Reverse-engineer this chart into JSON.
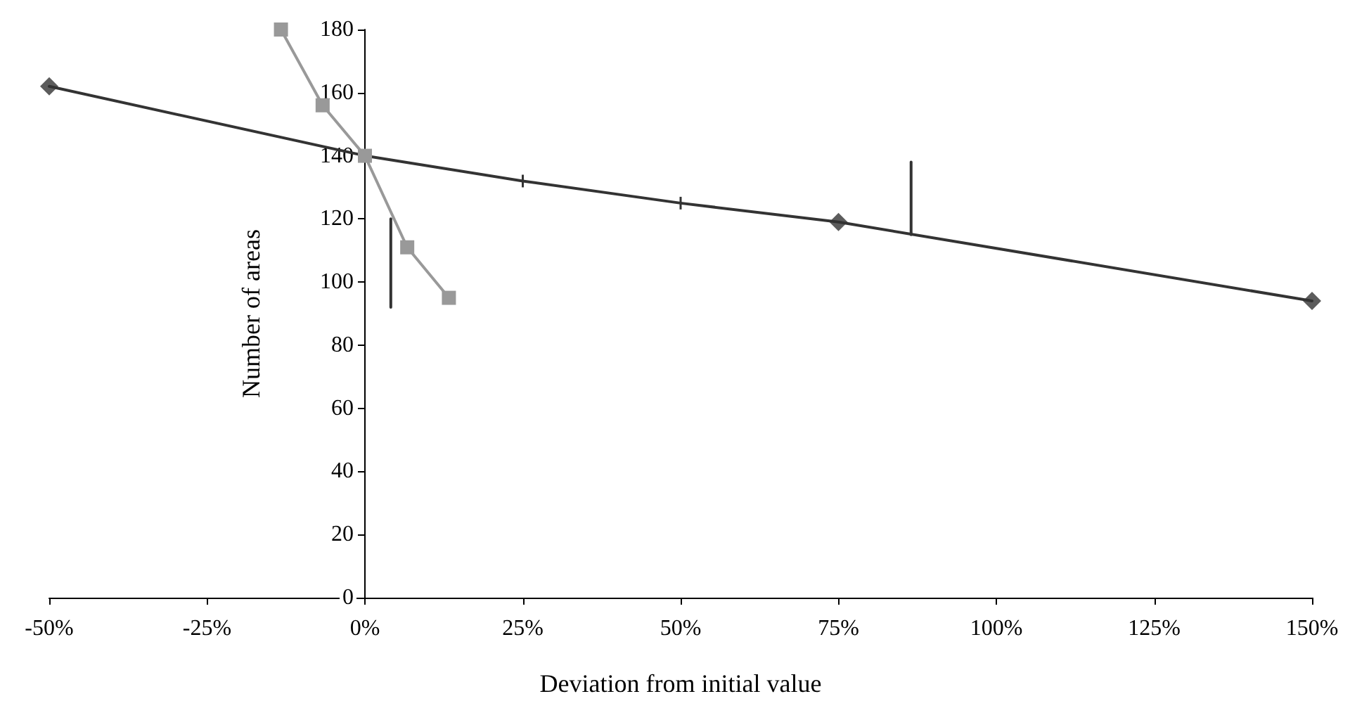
{
  "chart_data": {
    "type": "line",
    "xlabel": "Deviation from initial value",
    "ylabel": "Number of areas",
    "xlim": [
      -50,
      150
    ],
    "ylim": [
      0,
      180
    ],
    "xticks": [
      {
        "value": -50,
        "label": "-50%"
      },
      {
        "value": -25,
        "label": "-25%"
      },
      {
        "value": 0,
        "label": "0%"
      },
      {
        "value": 25,
        "label": "25%"
      },
      {
        "value": 50,
        "label": "50%"
      },
      {
        "value": 75,
        "label": "75%"
      },
      {
        "value": 100,
        "label": "100%"
      },
      {
        "value": 125,
        "label": "125%"
      },
      {
        "value": 150,
        "label": "150%"
      }
    ],
    "yticks": [
      0,
      20,
      40,
      60,
      80,
      100,
      120,
      140,
      160,
      180
    ],
    "grid": false,
    "series": [
      {
        "color": "#333333",
        "marker": "none",
        "x": [
          -50,
          0,
          25,
          50,
          75,
          150
        ],
        "values": [
          162,
          140,
          132,
          125,
          119,
          94
        ],
        "errors": [
          null,
          null,
          2,
          2,
          null,
          null
        ]
      },
      {
        "type": "scatter",
        "color": "#333333",
        "marker": "diamond",
        "x": [
          -50,
          75,
          150
        ],
        "values": [
          162,
          119,
          94
        ]
      },
      {
        "type": "line",
        "color": "#999999",
        "marker": "square",
        "x": [
          -13.3,
          -6.7,
          0,
          6.7,
          13.3
        ],
        "values": [
          180,
          156,
          140,
          111,
          95
        ]
      },
      {
        "type": "line",
        "color": "#333333",
        "marker": "none",
        "x": [
          4.1,
          4.1
        ],
        "values": [
          92,
          120
        ]
      },
      {
        "type": "line",
        "color": "#333333",
        "marker": "none",
        "x": [
          86.5,
          86.5
        ],
        "values": [
          115,
          138
        ]
      }
    ]
  }
}
